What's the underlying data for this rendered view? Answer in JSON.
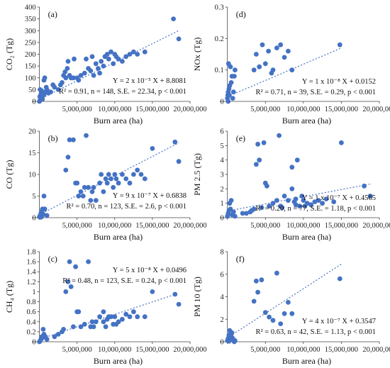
{
  "chart_data": [
    {
      "type": "scatter",
      "panel_label": "(a)",
      "ylabel": "CO₂ (Tg)",
      "xlabel": "Burn area (ha)",
      "xlim": [
        -1000000,
        20000000
      ],
      "ylim": [
        0,
        400
      ],
      "xticks": [
        "",
        "5,000,000",
        "10,000,000",
        "15,000,000",
        "20,000,000"
      ],
      "xtick_values": [
        0,
        5000000,
        10000000,
        15000000,
        20000000
      ],
      "yticks": [
        "0",
        "50",
        "100",
        "150",
        "200",
        "250",
        "300",
        "350",
        "400"
      ],
      "ytick_values": [
        0,
        50,
        100,
        150,
        200,
        250,
        300,
        350,
        400
      ],
      "equation": "Y = 2 x 10⁻⁵ X + 8.8081",
      "stats": "R² = 0.91, n = 148, S.E. = 22.34, p < 0.001",
      "trend": {
        "x": [
          0,
          18500000
        ],
        "y": [
          8.8,
          300
        ]
      },
      "points": [
        [
          0,
          0
        ],
        [
          100000,
          5
        ],
        [
          150000,
          10
        ],
        [
          200000,
          15
        ],
        [
          300000,
          20
        ],
        [
          400000,
          10
        ],
        [
          500000,
          25
        ],
        [
          600000,
          30
        ],
        [
          800000,
          40
        ],
        [
          900000,
          60
        ],
        [
          1000000,
          50
        ],
        [
          1200000,
          35
        ],
        [
          1500000,
          40
        ],
        [
          1800000,
          70
        ],
        [
          2000000,
          60
        ],
        [
          2500000,
          50
        ],
        [
          2800000,
          70
        ],
        [
          3000000,
          80
        ],
        [
          3200000,
          110
        ],
        [
          3400000,
          125
        ],
        [
          3500000,
          100
        ],
        [
          3700000,
          140
        ],
        [
          3800000,
          170
        ],
        [
          4000000,
          110
        ],
        [
          4200000,
          100
        ],
        [
          4500000,
          100
        ],
        [
          4600000,
          180
        ],
        [
          5000000,
          100
        ],
        [
          5200000,
          90
        ],
        [
          5500000,
          110
        ],
        [
          6000000,
          120
        ],
        [
          6200000,
          180
        ],
        [
          6500000,
          140
        ],
        [
          6800000,
          130
        ],
        [
          7000000,
          190
        ],
        [
          7200000,
          110
        ],
        [
          7500000,
          160
        ],
        [
          7800000,
          140
        ],
        [
          8000000,
          120
        ],
        [
          8200000,
          170
        ],
        [
          8500000,
          150
        ],
        [
          8700000,
          190
        ],
        [
          9000000,
          200
        ],
        [
          9200000,
          180
        ],
        [
          9500000,
          210
        ],
        [
          9800000,
          160
        ],
        [
          10000000,
          200
        ],
        [
          10200000,
          190
        ],
        [
          10500000,
          180
        ],
        [
          11000000,
          170
        ],
        [
          11500000,
          190
        ],
        [
          12000000,
          200
        ],
        [
          12500000,
          210
        ],
        [
          13000000,
          200
        ],
        [
          14000000,
          210
        ],
        [
          17800000,
          350
        ],
        [
          18500000,
          265
        ],
        [
          100000,
          50
        ],
        [
          200000,
          30
        ],
        [
          300000,
          45
        ],
        [
          600000,
          90
        ],
        [
          700000,
          100
        ],
        [
          50000,
          20
        ]
      ]
    },
    {
      "type": "scatter",
      "panel_label": "(d)",
      "ylabel": "NOx (Tg)",
      "xlabel": "Burn area (ha)",
      "xlim": [
        -1000000,
        20000000
      ],
      "ylim": [
        0,
        0.3
      ],
      "xticks": [
        "",
        "5,000,000",
        "10,000,000",
        "15,000,000",
        "20,000,000"
      ],
      "xtick_values": [
        0,
        5000000,
        10000000,
        15000000,
        20000000
      ],
      "yticks": [
        "0",
        "0.1",
        "0.2",
        "0.3"
      ],
      "ytick_values": [
        0,
        0.1,
        0.2,
        0.3
      ],
      "equation": "Y = 1 x 10⁻⁸ X + 0.0152",
      "stats": "R² = 0.71, n = 39, S.E. = 0.29, p < 0.001",
      "trend": {
        "x": [
          0,
          15000000
        ],
        "y": [
          0.015,
          0.17
        ]
      },
      "points": [
        [
          0,
          0.01
        ],
        [
          50000,
          0.02
        ],
        [
          100000,
          0.03
        ],
        [
          150000,
          0.12
        ],
        [
          200000,
          0.04
        ],
        [
          300000,
          0.05
        ],
        [
          400000,
          0.11
        ],
        [
          500000,
          0.06
        ],
        [
          600000,
          0.08
        ],
        [
          700000,
          0.01
        ],
        [
          1000000,
          0.1
        ],
        [
          3500000,
          0.1
        ],
        [
          3800000,
          0.15
        ],
        [
          4200000,
          0.11
        ],
        [
          4600000,
          0.18
        ],
        [
          5000000,
          0.12
        ],
        [
          5400000,
          0.16
        ],
        [
          5800000,
          0.09
        ],
        [
          6000000,
          0.1
        ],
        [
          6500000,
          0.17
        ],
        [
          7000000,
          0.18
        ],
        [
          7500000,
          0.14
        ],
        [
          8000000,
          0.16
        ],
        [
          8500000,
          0.1
        ],
        [
          14800000,
          0.18
        ],
        [
          100000,
          0.0
        ],
        [
          250000,
          0.02
        ],
        [
          800000,
          0.03
        ],
        [
          900000,
          0.08
        ]
      ]
    },
    {
      "type": "scatter",
      "panel_label": "(b)",
      "ylabel": "CO (Tg)",
      "xlabel": "Burn area (ha)",
      "xlim": [
        -1000000,
        20000000
      ],
      "ylim": [
        0,
        20
      ],
      "xticks": [
        "",
        "5,000,000",
        "10,000,000",
        "15,000,000",
        "20,000,000"
      ],
      "xtick_values": [
        0,
        5000000,
        10000000,
        15000000,
        20000000
      ],
      "yticks": [
        "0",
        "5",
        "10",
        "15",
        "20"
      ],
      "ytick_values": [
        0,
        5,
        10,
        15,
        20
      ],
      "equation": "Y = 9 x 10⁻⁷ X + 0.6838",
      "stats": "R² = 0.70, n = 123, S.E. = 2.6, p < 0.001",
      "trend": {
        "x": [
          0,
          18500000
        ],
        "y": [
          0.68,
          17.3
        ]
      },
      "points": [
        [
          0,
          0.2
        ],
        [
          100000,
          0.5
        ],
        [
          200000,
          1
        ],
        [
          300000,
          1.5
        ],
        [
          400000,
          2
        ],
        [
          500000,
          0.8
        ],
        [
          600000,
          5
        ],
        [
          700000,
          2
        ],
        [
          1000000,
          0.5
        ],
        [
          3500000,
          11
        ],
        [
          3800000,
          14
        ],
        [
          4000000,
          18
        ],
        [
          4500000,
          18
        ],
        [
          4800000,
          8
        ],
        [
          5000000,
          8
        ],
        [
          5200000,
          5
        ],
        [
          5500000,
          6
        ],
        [
          5800000,
          5
        ],
        [
          6000000,
          7
        ],
        [
          6200000,
          19
        ],
        [
          6500000,
          7
        ],
        [
          6800000,
          4
        ],
        [
          7000000,
          6
        ],
        [
          7200000,
          7
        ],
        [
          7500000,
          4
        ],
        [
          8000000,
          8
        ],
        [
          8200000,
          10
        ],
        [
          8500000,
          6
        ],
        [
          8800000,
          9
        ],
        [
          9000000,
          8
        ],
        [
          9200000,
          10
        ],
        [
          9500000,
          9
        ],
        [
          9800000,
          7
        ],
        [
          10000000,
          10
        ],
        [
          10200000,
          9
        ],
        [
          10500000,
          8
        ],
        [
          11000000,
          10
        ],
        [
          11500000,
          9
        ],
        [
          12000000,
          8
        ],
        [
          12500000,
          10
        ],
        [
          13000000,
          11
        ],
        [
          13500000,
          10
        ],
        [
          14000000,
          9
        ],
        [
          15000000,
          16
        ],
        [
          18000000,
          17.5
        ],
        [
          18500000,
          13
        ],
        [
          200000,
          0.1
        ],
        [
          300000,
          0.3
        ],
        [
          400000,
          0.6
        ]
      ]
    },
    {
      "type": "scatter",
      "panel_label": "(e)",
      "ylabel": "PM 2.5 (Tg)",
      "xlabel": "Burn area (ha)",
      "xlim": [
        -1000000,
        20000000
      ],
      "ylim": [
        0,
        6
      ],
      "xticks": [
        "",
        "5,000,000",
        "10,000,000",
        "15,000,000",
        "20,000,000"
      ],
      "xtick_values": [
        0,
        5000000,
        10000000,
        15000000,
        20000000
      ],
      "yticks": [
        "0",
        "1",
        "2",
        "3",
        "4",
        "5",
        "6"
      ],
      "ytick_values": [
        0,
        1,
        2,
        3,
        4,
        5,
        6
      ],
      "equation": "Y = 1 x 10⁻⁷ X + 0.4565",
      "stats": "R² = 0.20, n = 77, S.E. = 1.18, p < 0.001",
      "trend": {
        "x": [
          0,
          19000000
        ],
        "y": [
          0.46,
          2.35
        ]
      },
      "points": [
        [
          0,
          0.1
        ],
        [
          100000,
          0.3
        ],
        [
          200000,
          0.5
        ],
        [
          300000,
          1.0
        ],
        [
          400000,
          0.6
        ],
        [
          500000,
          1.2
        ],
        [
          600000,
          0.2
        ],
        [
          800000,
          0.4
        ],
        [
          1000000,
          0.1
        ],
        [
          2000000,
          0.3
        ],
        [
          2500000,
          0.3
        ],
        [
          3000000,
          0.4
        ],
        [
          3200000,
          0.5
        ],
        [
          3500000,
          0.6
        ],
        [
          3800000,
          3.7
        ],
        [
          4000000,
          5.1
        ],
        [
          4200000,
          4.0
        ],
        [
          4500000,
          0.7
        ],
        [
          4800000,
          5.2
        ],
        [
          5000000,
          2.4
        ],
        [
          5200000,
          2.2
        ],
        [
          5500000,
          0.8
        ],
        [
          6000000,
          1.0
        ],
        [
          6500000,
          1.2
        ],
        [
          6800000,
          5.7
        ],
        [
          7000000,
          0.8
        ],
        [
          7200000,
          0.7
        ],
        [
          7500000,
          1.5
        ],
        [
          8000000,
          1.2
        ],
        [
          8500000,
          2.0
        ],
        [
          8800000,
          1.1
        ],
        [
          9000000,
          1.3
        ],
        [
          9200000,
          4.0
        ],
        [
          9500000,
          0.8
        ],
        [
          9800000,
          1.5
        ],
        [
          10000000,
          1.2
        ],
        [
          10500000,
          1.0
        ],
        [
          11000000,
          0.9
        ],
        [
          11500000,
          1.1
        ],
        [
          12000000,
          1.2
        ],
        [
          12500000,
          1.0
        ],
        [
          13000000,
          1.3
        ],
        [
          14000000,
          1.1
        ],
        [
          15000000,
          5.2
        ],
        [
          18000000,
          2.2
        ],
        [
          18800000,
          1.5
        ],
        [
          8500000,
          3.5
        ],
        [
          9000000,
          0.9
        ],
        [
          10200000,
          0.8
        ]
      ]
    },
    {
      "type": "scatter",
      "panel_label": "(c)",
      "ylabel": "CH₄ (Tg)",
      "xlabel": "Burn area (ha)",
      "xlim": [
        -1000000,
        20000000
      ],
      "ylim": [
        0,
        1.8
      ],
      "xticks": [
        "",
        "5,000,000",
        "10,000,000",
        "15,000,000",
        "20,000,000"
      ],
      "xtick_values": [
        0,
        5000000,
        10000000,
        15000000,
        20000000
      ],
      "yticks": [
        "0",
        "0.2",
        "0.4",
        "0.6",
        "0.8",
        "1",
        "1.2",
        "1.4",
        "1.6",
        "1.8"
      ],
      "ytick_values": [
        0,
        0.2,
        0.4,
        0.6,
        0.8,
        1.0,
        1.2,
        1.4,
        1.6,
        1.8
      ],
      "equation": "Y = 5 x 10⁻⁸ X + 0.0496",
      "stats": "R² = 0.48, n = 123, S.E. = 0.24, p < 0.001",
      "trend": {
        "x": [
          0,
          18500000
        ],
        "y": [
          0.05,
          0.97
        ]
      },
      "points": [
        [
          0,
          0.0
        ],
        [
          100000,
          0.02
        ],
        [
          200000,
          0.05
        ],
        [
          300000,
          0.1
        ],
        [
          400000,
          0.08
        ],
        [
          500000,
          0.25
        ],
        [
          600000,
          0.15
        ],
        [
          800000,
          0.1
        ],
        [
          1000000,
          0.05
        ],
        [
          2000000,
          0.1
        ],
        [
          2500000,
          0.15
        ],
        [
          3000000,
          0.2
        ],
        [
          3200000,
          0.25
        ],
        [
          3500000,
          1.0
        ],
        [
          3800000,
          1.2
        ],
        [
          4000000,
          1.6
        ],
        [
          4200000,
          1.1
        ],
        [
          4500000,
          0.3
        ],
        [
          4800000,
          1.5
        ],
        [
          5000000,
          0.6
        ],
        [
          5200000,
          0.6
        ],
        [
          5500000,
          0.3
        ],
        [
          6000000,
          0.35
        ],
        [
          6500000,
          1.6
        ],
        [
          6800000,
          0.3
        ],
        [
          7000000,
          0.4
        ],
        [
          7200000,
          0.3
        ],
        [
          7500000,
          0.4
        ],
        [
          8000000,
          0.5
        ],
        [
          8500000,
          0.6
        ],
        [
          8800000,
          0.3
        ],
        [
          9000000,
          0.45
        ],
        [
          9200000,
          0.5
        ],
        [
          9500000,
          0.5
        ],
        [
          9800000,
          0.35
        ],
        [
          10000000,
          0.5
        ],
        [
          10500000,
          0.4
        ],
        [
          11000000,
          0.45
        ],
        [
          11500000,
          0.55
        ],
        [
          12000000,
          0.5
        ],
        [
          12500000,
          0.6
        ],
        [
          13000000,
          0.5
        ],
        [
          14000000,
          0.5
        ],
        [
          15000000,
          1.0
        ],
        [
          18000000,
          0.95
        ],
        [
          18500000,
          0.75
        ],
        [
          8500000,
          0.4
        ],
        [
          10200000,
          0.35
        ]
      ]
    },
    {
      "type": "scatter",
      "panel_label": "(f)",
      "ylabel": "PM 10 (Tg)",
      "xlabel": "Burn area (ha)",
      "xlim": [
        -1000000,
        20000000
      ],
      "ylim": [
        0,
        8
      ],
      "xticks": [
        "",
        "5,000,000",
        "10,000,000",
        "15,000,000",
        "20,000,000"
      ],
      "xtick_values": [
        0,
        5000000,
        10000000,
        15000000,
        20000000
      ],
      "yticks": [
        "0",
        "2",
        "4",
        "6",
        "8"
      ],
      "ytick_values": [
        0,
        2,
        4,
        6,
        8
      ],
      "equation": "Y = 4 x 10⁻⁷ X + 0.3547",
      "stats": "R² = 0.63, n = 42, S.E. = 1.13, p < 0.001",
      "trend": {
        "x": [
          0,
          15000000
        ],
        "y": [
          0.35,
          6.9
        ]
      },
      "points": [
        [
          0,
          0.1
        ],
        [
          100000,
          0.3
        ],
        [
          200000,
          0.6
        ],
        [
          300000,
          1.0
        ],
        [
          400000,
          0.2
        ],
        [
          500000,
          0.5
        ],
        [
          600000,
          0.8
        ],
        [
          1000000,
          0.1
        ],
        [
          3500000,
          3.6
        ],
        [
          3800000,
          5.4
        ],
        [
          4000000,
          4.4
        ],
        [
          4500000,
          5.5
        ],
        [
          5000000,
          2.6
        ],
        [
          5500000,
          2.2
        ],
        [
          6000000,
          1.9
        ],
        [
          6500000,
          6.1
        ],
        [
          7000000,
          1.6
        ],
        [
          7500000,
          2.5
        ],
        [
          8000000,
          3.5
        ],
        [
          8500000,
          2.5
        ],
        [
          14800000,
          5.6
        ],
        [
          200000,
          0.05
        ],
        [
          700000,
          0.3
        ],
        [
          900000,
          0.0
        ]
      ]
    }
  ]
}
